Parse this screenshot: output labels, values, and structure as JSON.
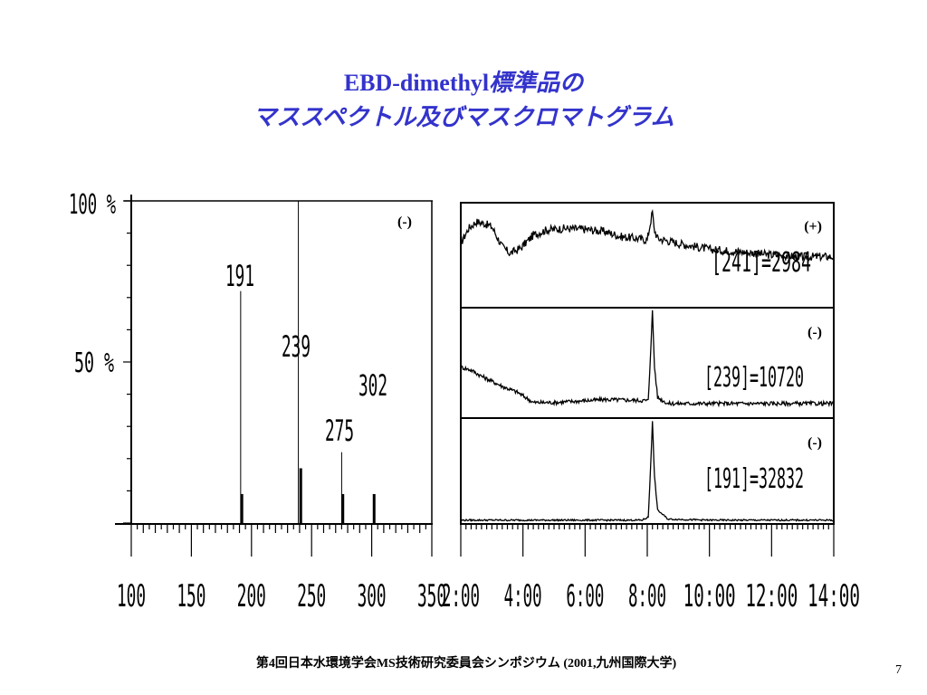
{
  "slide": {
    "title_line1_latin": "EBD-dimethyl",
    "title_line1_ja": "標準品の",
    "title_line2": "マススペクトル及びマスクロマトグラム",
    "footer": "第4回日本水環境学会MS技術研究委員会シンポジウム (2001,九州国際大学)",
    "page_number": "7",
    "title_color": "#3333cc"
  },
  "chart_data": [
    {
      "type": "bar",
      "name": "mass-spectrum",
      "mode_label": "(-)",
      "x": [
        192,
        241,
        276,
        302
      ],
      "labeled_peaks": [
        {
          "label": "191",
          "x": 191,
          "y": 72
        },
        {
          "label": "239",
          "x": 239,
          "y": 100
        },
        {
          "label": "275",
          "x": 275,
          "y": 22
        },
        {
          "label": "302",
          "x": 302,
          "y": 9
        }
      ],
      "small_peaks": [
        {
          "x": 192,
          "y": 9
        },
        {
          "x": 241,
          "y": 17
        },
        {
          "x": 276,
          "y": 9
        },
        {
          "x": 302,
          "y": 9
        }
      ],
      "xlim": [
        100,
        350
      ],
      "x_ticks": [
        "100",
        "150",
        "200",
        "250",
        "300",
        "350"
      ],
      "ylim": [
        0,
        100
      ],
      "y_ticks": [
        "100 %",
        "50 %"
      ]
    },
    {
      "type": "line",
      "name": "mass-chromatograms",
      "xlim": [
        120,
        840
      ],
      "x_ticks": [
        "2:00",
        "4:00",
        "6:00",
        "8:00",
        "10:00",
        "12:00",
        "14:00"
      ],
      "series": [
        {
          "mode": "(+)",
          "label": "[241]=2984",
          "points": [
            [
              120,
              0.62
            ],
            [
              135,
              0.8
            ],
            [
              150,
              0.88
            ],
            [
              165,
              0.86
            ],
            [
              180,
              0.82
            ],
            [
              200,
              0.58
            ],
            [
              215,
              0.5
            ],
            [
              235,
              0.56
            ],
            [
              260,
              0.72
            ],
            [
              285,
              0.78
            ],
            [
              320,
              0.8
            ],
            [
              360,
              0.79
            ],
            [
              400,
              0.76
            ],
            [
              430,
              0.7
            ],
            [
              460,
              0.68
            ],
            [
              480,
              0.66
            ],
            [
              487,
              0.9
            ],
            [
              490,
              1.0
            ],
            [
              493,
              0.8
            ],
            [
              500,
              0.68
            ],
            [
              540,
              0.62
            ],
            [
              600,
              0.55
            ],
            [
              660,
              0.52
            ],
            [
              720,
              0.48
            ],
            [
              780,
              0.46
            ],
            [
              840,
              0.46
            ]
          ]
        },
        {
          "mode": "(-)",
          "label": "[239]=10720",
          "points": [
            [
              120,
              0.45
            ],
            [
              140,
              0.42
            ],
            [
              160,
              0.36
            ],
            [
              200,
              0.26
            ],
            [
              230,
              0.2
            ],
            [
              260,
              0.1
            ],
            [
              300,
              0.1
            ],
            [
              400,
              0.13
            ],
            [
              470,
              0.12
            ],
            [
              482,
              0.12
            ],
            [
              486,
              0.55
            ],
            [
              490,
              1.0
            ],
            [
              494,
              0.45
            ],
            [
              500,
              0.15
            ],
            [
              520,
              0.09
            ],
            [
              600,
              0.09
            ],
            [
              700,
              0.09
            ],
            [
              840,
              0.09
            ]
          ]
        },
        {
          "mode": "(-)",
          "label": "[191]=32832",
          "points": [
            [
              120,
              0.02
            ],
            [
              300,
              0.02
            ],
            [
              470,
              0.02
            ],
            [
              482,
              0.05
            ],
            [
              486,
              0.5
            ],
            [
              490,
              1.0
            ],
            [
              494,
              0.45
            ],
            [
              500,
              0.12
            ],
            [
              520,
              0.03
            ],
            [
              600,
              0.02
            ],
            [
              840,
              0.02
            ]
          ]
        }
      ]
    }
  ]
}
